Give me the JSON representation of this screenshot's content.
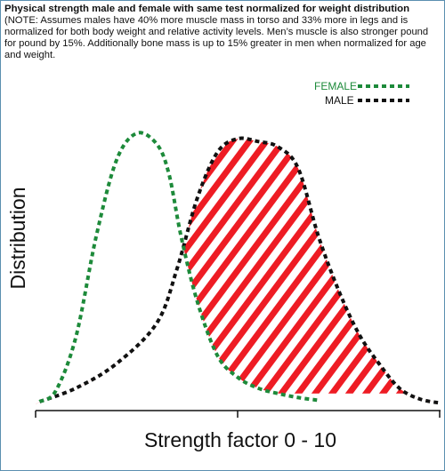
{
  "header": {
    "title": "Physical strength male and female with same test normalized for weight distribution",
    "note": "(NOTE: Assumes males have 40% more muscle mass in torso and 33% more in legs and is normalized for both body weight and relative activity levels.  Men’s muscle is also stronger pound for pound by 15%.  Additionally bone mass is up to 15% greater in men when normalized for age and weight."
  },
  "chart_data": {
    "type": "line",
    "title": "Physical strength male and female with same test normalized for weight distribution",
    "xlabel": "Strength factor 0 - 10",
    "ylabel": "Distribution",
    "xlim": [
      0,
      10
    ],
    "ylim": [
      0,
      1
    ],
    "grid": false,
    "legend_position": "top-right",
    "overlap_hatch": {
      "color": "#ee1c24",
      "description": "hatched region under male curve beyond female curve"
    },
    "series": [
      {
        "name": "FEMALE",
        "color": "#1d8a3a",
        "style": "dotted",
        "x": [
          0.1,
          0.5,
          1.0,
          1.5,
          2.0,
          2.5,
          3.0,
          3.3,
          3.6,
          4.0,
          4.5,
          5.0,
          5.5,
          6.0,
          6.5,
          7.0
        ],
        "y": [
          0.01,
          0.05,
          0.25,
          0.62,
          0.9,
          1.0,
          0.96,
          0.85,
          0.62,
          0.38,
          0.18,
          0.1,
          0.06,
          0.04,
          0.025,
          0.015
        ]
      },
      {
        "name": "MALE",
        "color": "#111111",
        "style": "dotted",
        "x": [
          0.1,
          1.0,
          2.0,
          3.0,
          3.5,
          4.0,
          4.5,
          5.0,
          5.5,
          6.0,
          6.5,
          7.0,
          7.5,
          8.0,
          8.5,
          9.0,
          9.5,
          10.0
        ],
        "y": [
          0.01,
          0.06,
          0.15,
          0.3,
          0.5,
          0.76,
          0.93,
          0.98,
          0.97,
          0.95,
          0.87,
          0.62,
          0.42,
          0.26,
          0.15,
          0.06,
          0.02,
          0.005
        ]
      }
    ]
  }
}
